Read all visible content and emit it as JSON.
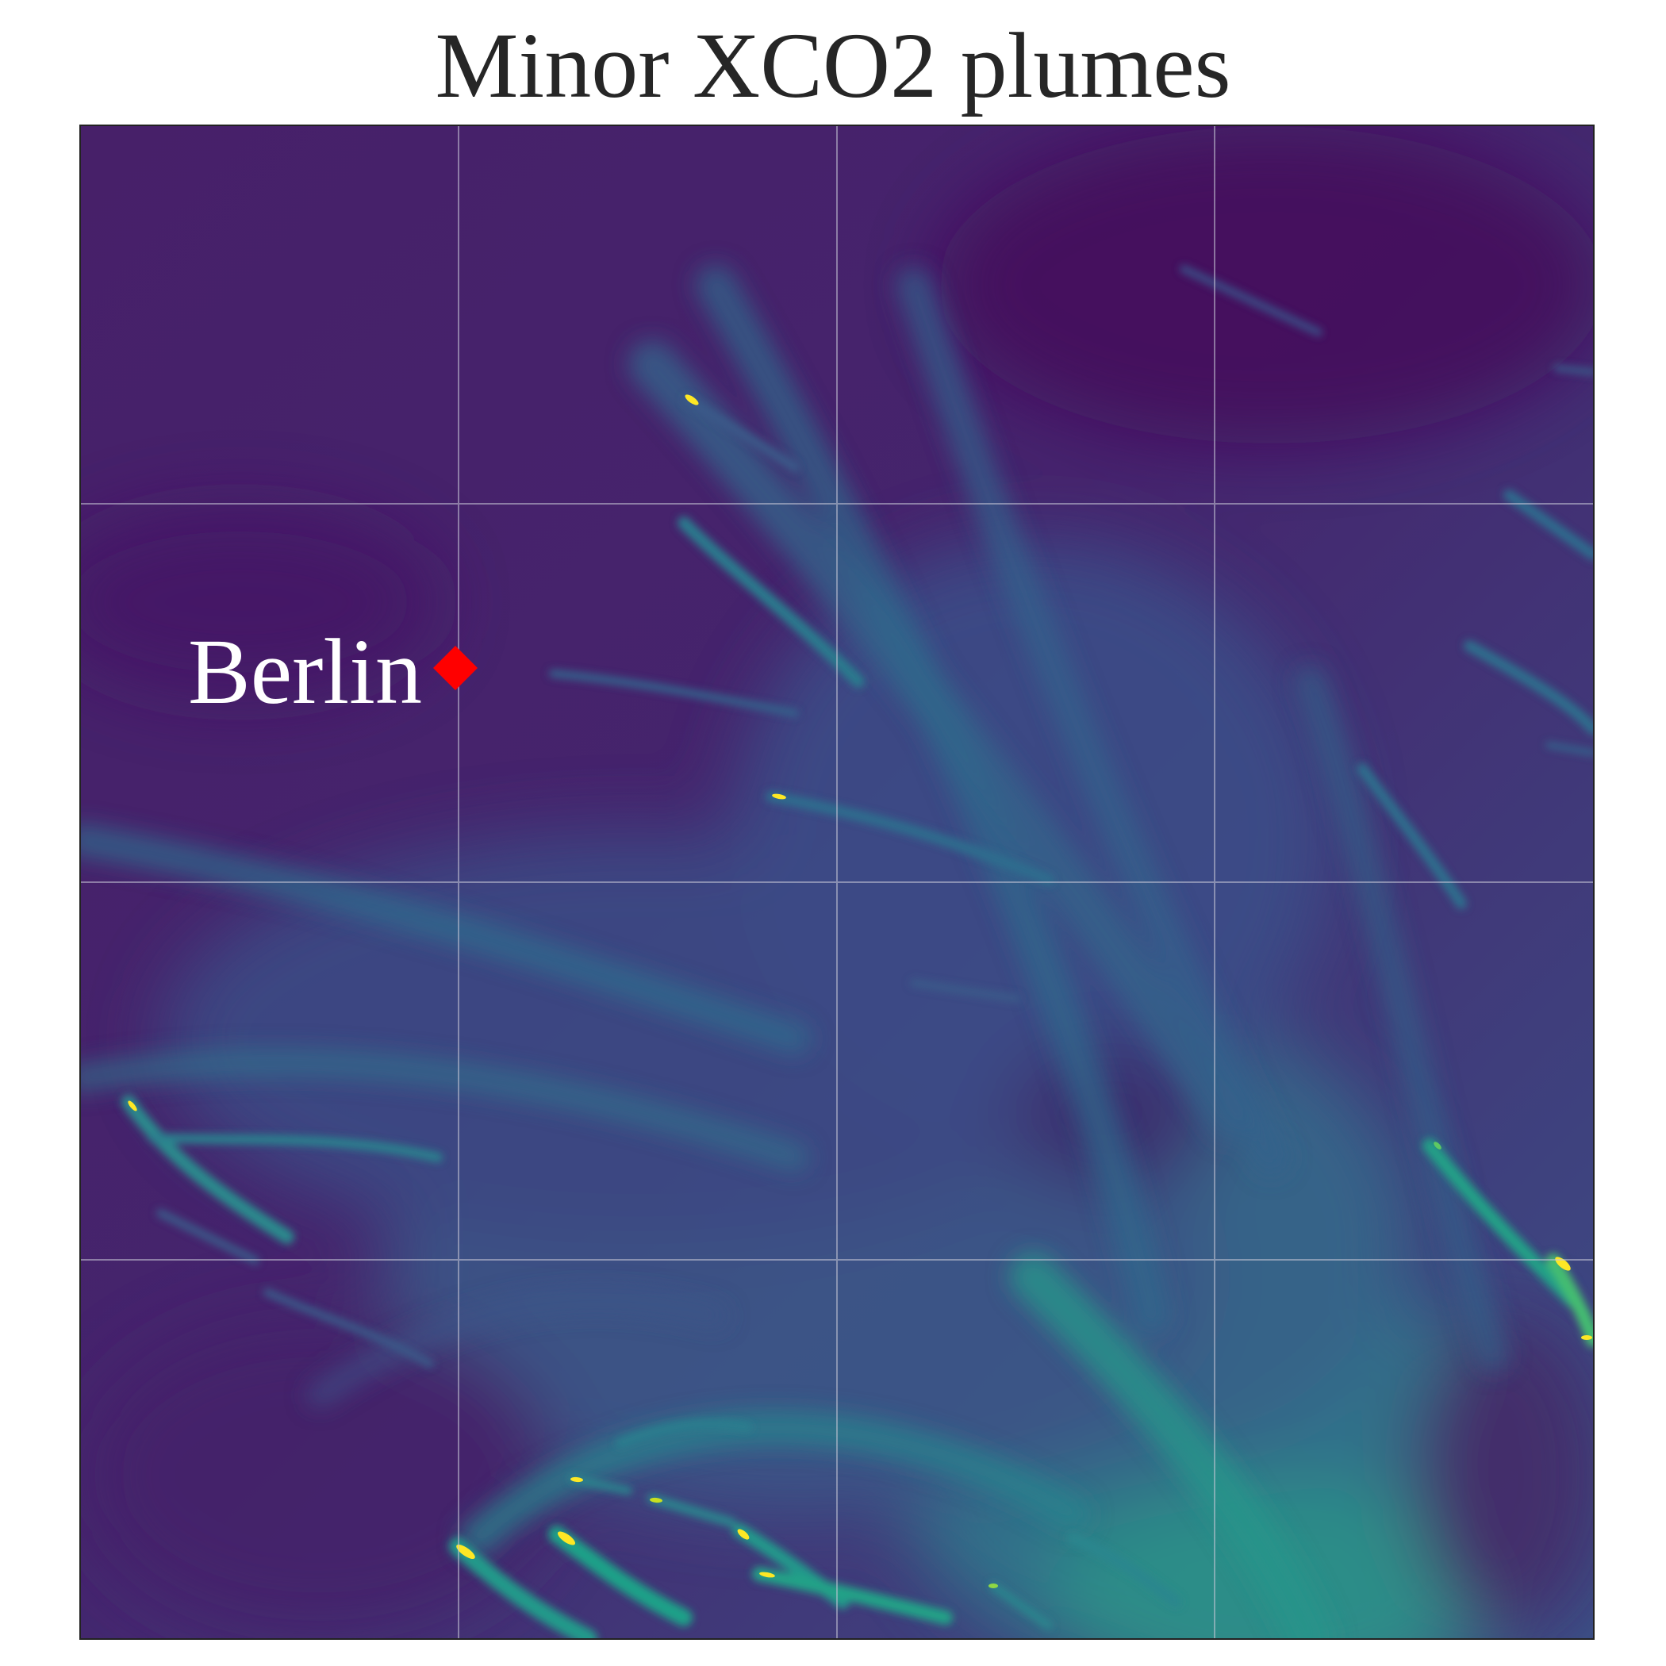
{
  "title": "Minor XCO2 plumes",
  "city": {
    "name": "Berlin",
    "marker_color": "#ff0000",
    "label_color": "#ffffff"
  },
  "map": {
    "colormap": "viridis",
    "background": "#471764",
    "gridlines": true,
    "grid_color": "#c8c8d8"
  }
}
